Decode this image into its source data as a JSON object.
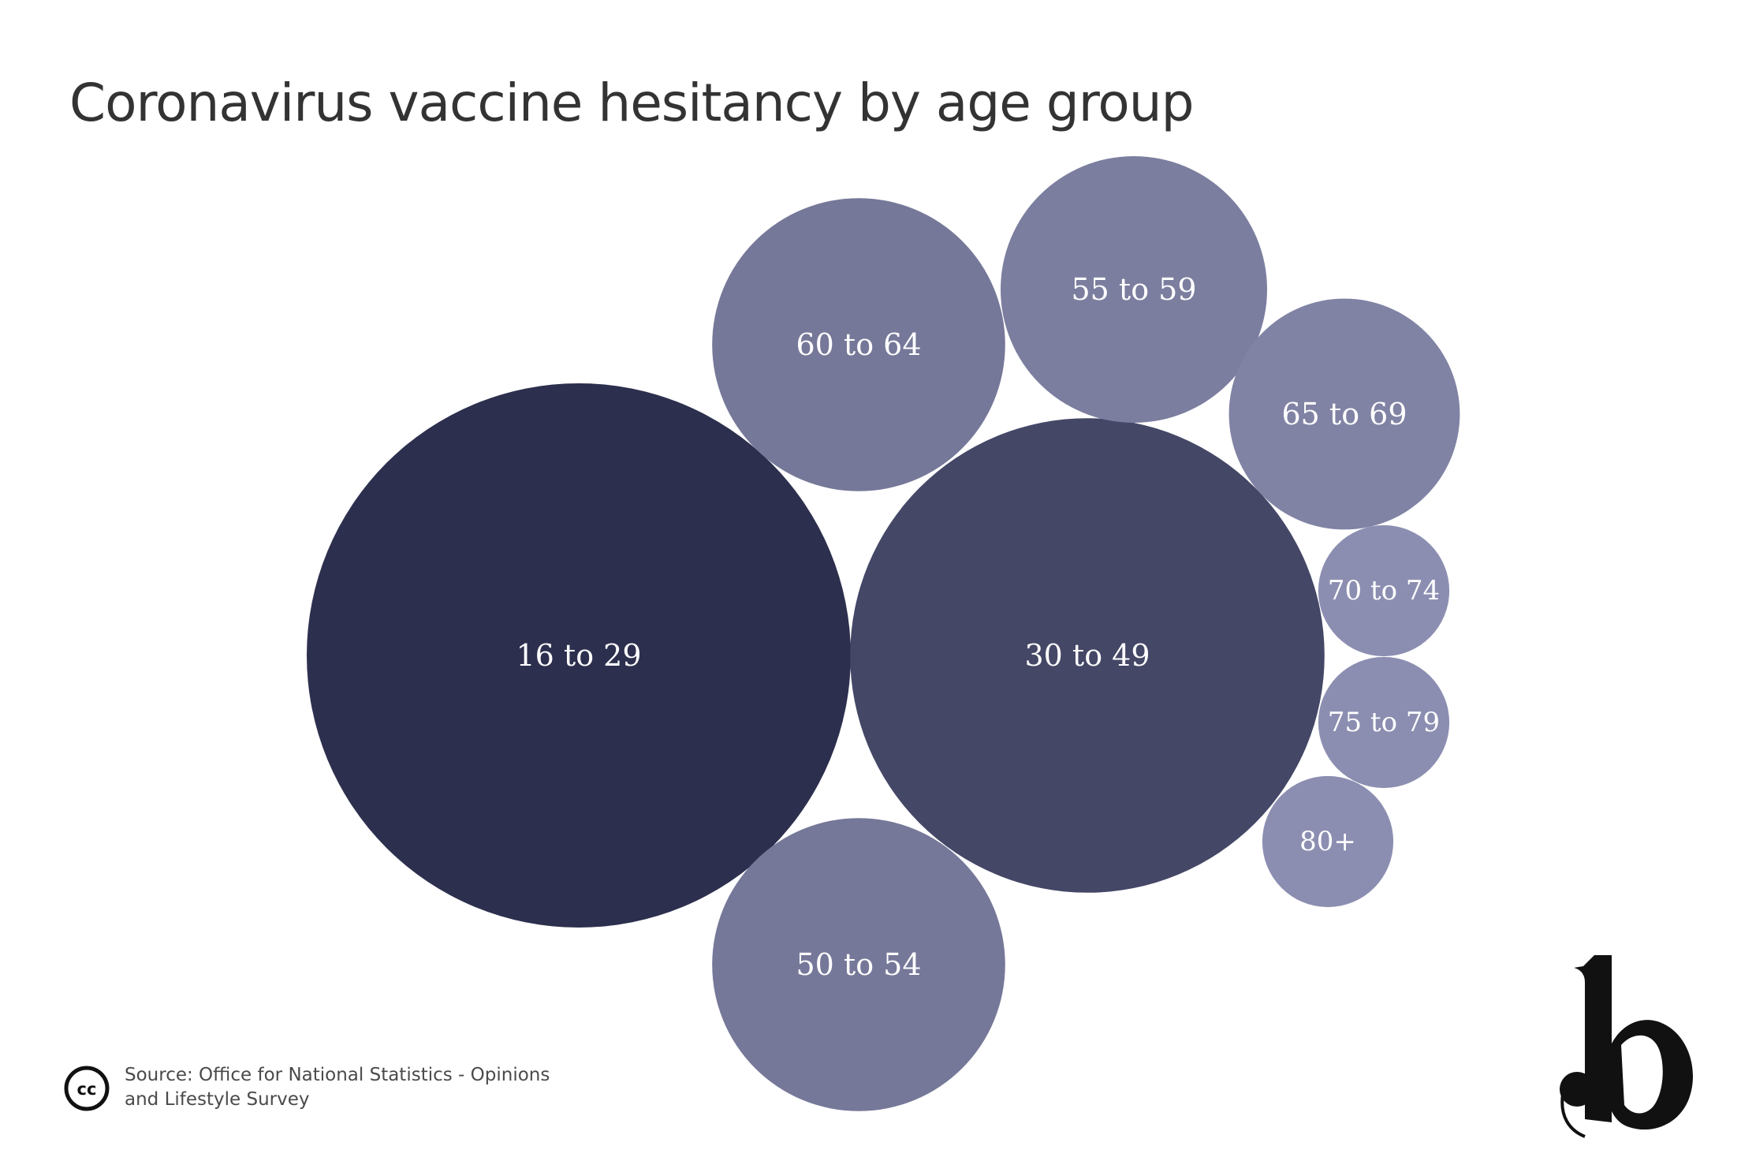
{
  "title": "Coronavirus vaccine hesitancy by age group",
  "source": "Source: Office for National Statistics - Opinions and Lifestyle Survey",
  "icons": {
    "license": "creative-commons-icon",
    "brand": "b-logo-icon"
  },
  "chart_data": {
    "type": "bubble",
    "title": "Coronavirus vaccine hesitancy by age group",
    "value_labels_shown": false,
    "bubbles": [
      {
        "label": "16 to 29",
        "relative_size": 1.0,
        "color": "#2d2f4e"
      },
      {
        "label": "30 to 49",
        "relative_size": 0.76,
        "color": "#444766"
      },
      {
        "label": "60 to 64",
        "relative_size": 0.29,
        "color": "#767899"
      },
      {
        "label": "50 to 54",
        "relative_size": 0.29,
        "color": "#767899"
      },
      {
        "label": "55 to 59",
        "relative_size": 0.24,
        "color": "#7c7e9f"
      },
      {
        "label": "65 to 69",
        "relative_size": 0.18,
        "color": "#8183a5"
      },
      {
        "label": "70 to 74",
        "relative_size": 0.058,
        "color": "#8c8eb1"
      },
      {
        "label": "75 to 79",
        "relative_size": 0.058,
        "color": "#8c8eb1"
      },
      {
        "label": "80+",
        "relative_size": 0.058,
        "color": "#8c8eb1"
      }
    ]
  }
}
